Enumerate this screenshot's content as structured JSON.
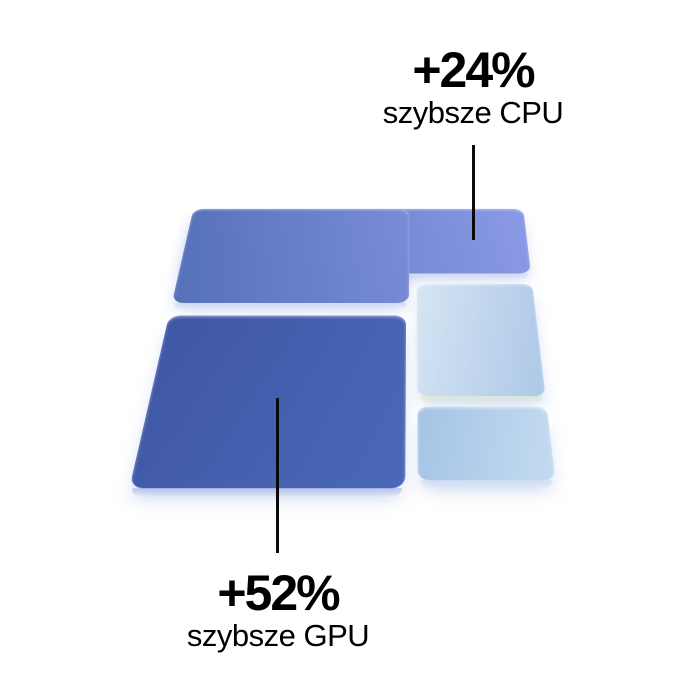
{
  "page": {
    "background": "#ffffff"
  },
  "callouts": {
    "cpu": {
      "value": "+24%",
      "label": "szybsze CPU"
    },
    "gpu": {
      "value": "+52%",
      "label": "szybsze GPU"
    }
  },
  "chip": {
    "line_color": "#0a0a0a",
    "tiles": [
      {
        "id": "cpu-block",
        "gradient_from": "#5571b8",
        "gradient_to": "#8b9ae6",
        "edge_color": "#d3dcf7"
      },
      {
        "id": "gpu-block",
        "gradient_from": "#3f57a4",
        "gradient_to": "#4a68b8",
        "edge_color": "#b8c5ec"
      },
      {
        "id": "right-top-block",
        "gradient_from": "#d6e5f3",
        "gradient_to": "#adc8e8",
        "edge_color": "#dcead9"
      },
      {
        "id": "right-bottom-block",
        "gradient_from": "#a4c3e5",
        "gradient_to": "#c3dbf1",
        "edge_color": "#cfdff4"
      }
    ]
  }
}
